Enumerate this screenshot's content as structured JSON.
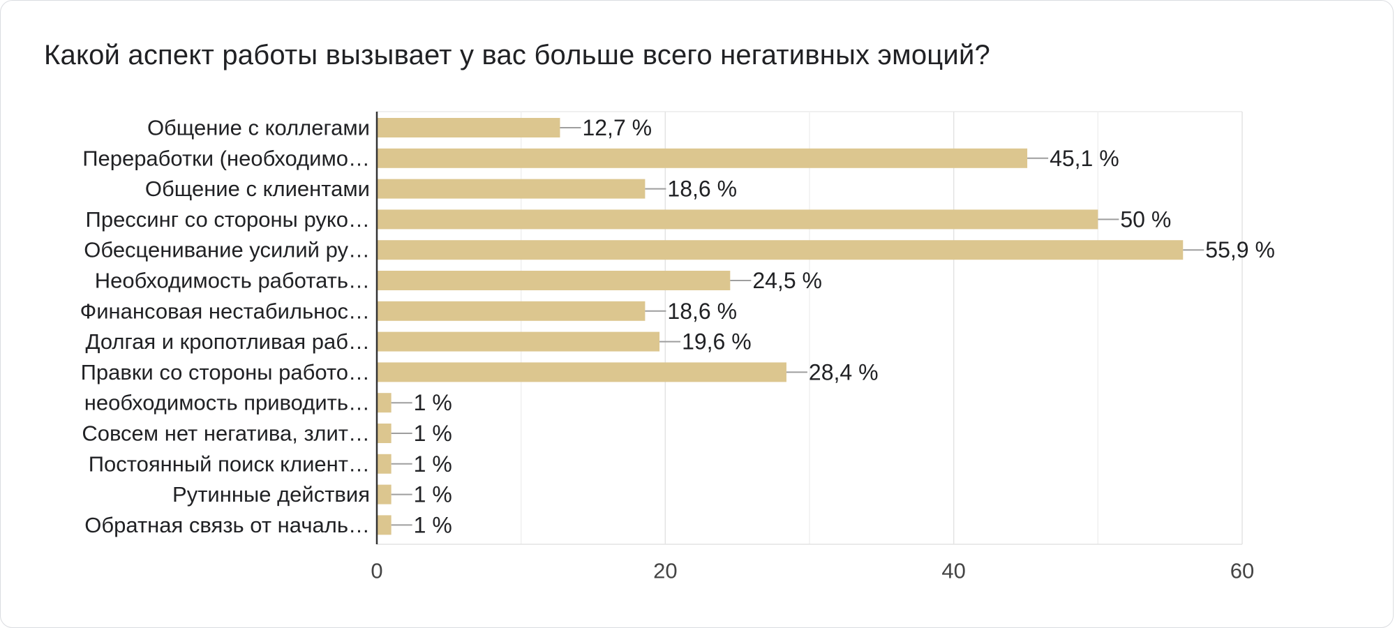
{
  "chart_data": {
    "type": "bar",
    "orientation": "horizontal",
    "title": "Какой аспект работы вызывает у вас больше всего негативных эмоций?",
    "xlabel": "",
    "ylabel": "",
    "xlim": [
      0,
      60
    ],
    "ticks": [
      0,
      20,
      40,
      60
    ],
    "tick_labels": [
      "0",
      "20",
      "40",
      "60"
    ],
    "grid": true,
    "bar_color": "#dcc68f",
    "categories": [
      "Общение с коллегами",
      "Переработки (необходимо…",
      "Общение с клиентами",
      "Прессинг со стороны руко…",
      "Обесценивание усилий ру…",
      "Необходимость работать…",
      "Финансовая нестабильнос…",
      "Долгая и кропотливая раб…",
      "Правки со стороны работо…",
      "необходимость приводить…",
      "Совсем нет негатива, злит…",
      "Постоянный поиск клиент…",
      "Рутинные действия",
      "Обратная связь от началь…"
    ],
    "values": [
      12.7,
      45.1,
      18.6,
      50,
      55.9,
      24.5,
      18.6,
      19.6,
      28.4,
      1,
      1,
      1,
      1,
      1
    ],
    "value_labels": [
      "12,7 %",
      "45,1 %",
      "18,6 %",
      "50 %",
      "55,9 %",
      "24,5 %",
      "18,6 %",
      "19,6 %",
      "28,4 %",
      "1 %",
      "1 %",
      "1 %",
      "1 %",
      "1 %"
    ]
  }
}
